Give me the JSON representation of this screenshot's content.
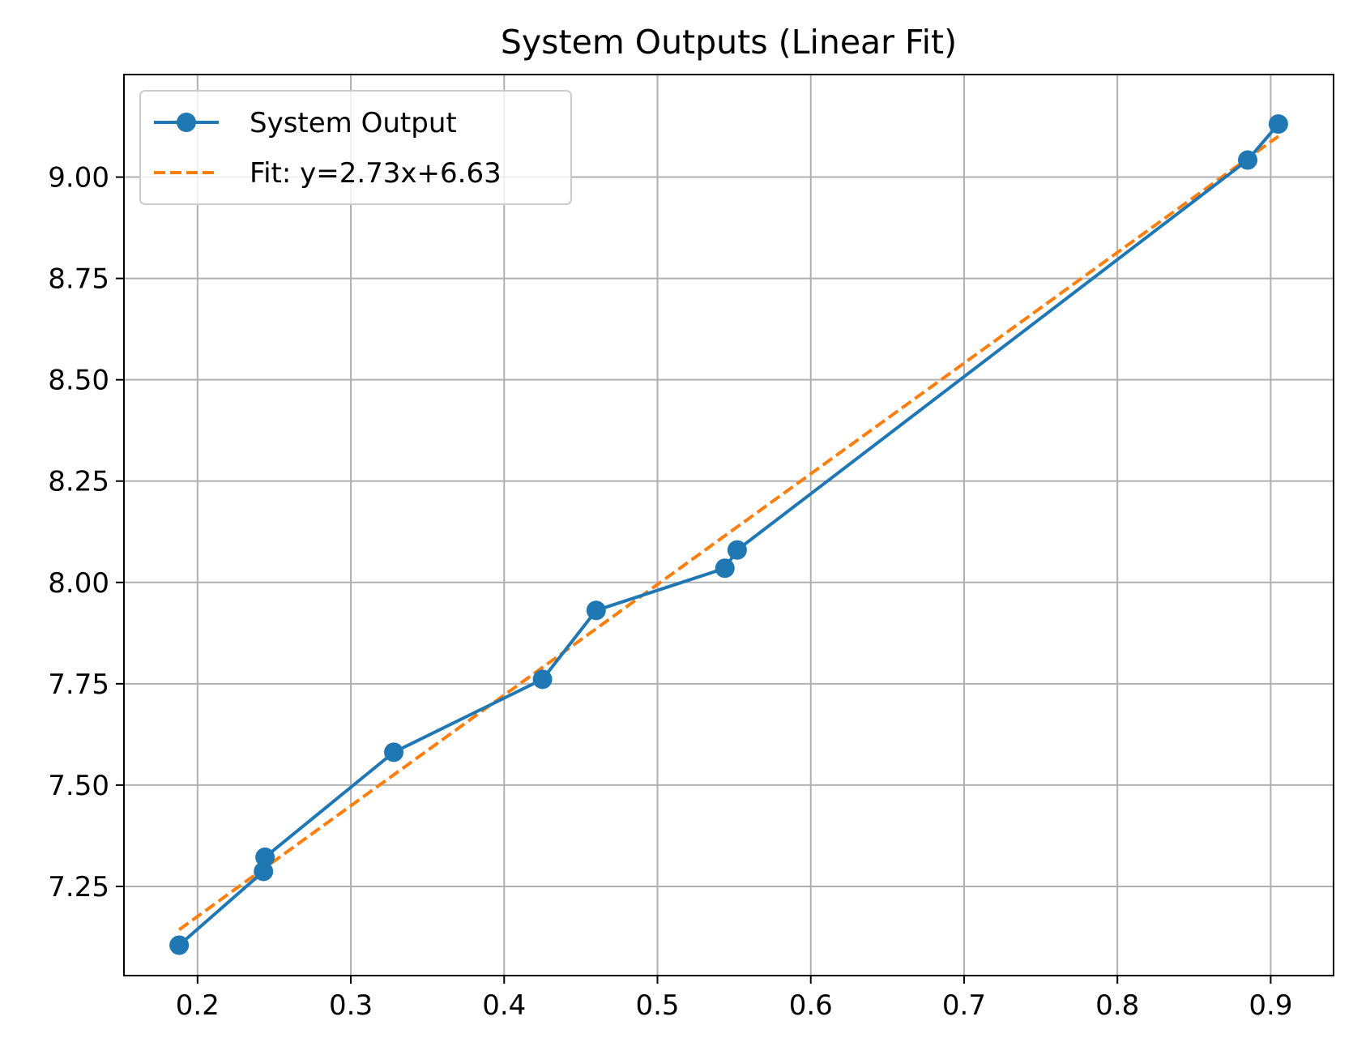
{
  "chart_data": {
    "type": "line",
    "title": "System Outputs (Linear Fit)",
    "xlabel": "",
    "ylabel": "",
    "xlim": [
      0.152,
      0.941
    ],
    "ylim": [
      7.03,
      9.253
    ],
    "grid": true,
    "legend_position": "top-left",
    "x_ticks": [
      0.2,
      0.3,
      0.4,
      0.5,
      0.6,
      0.7,
      0.8,
      0.9
    ],
    "x_tick_labels": [
      "0.2",
      "0.3",
      "0.4",
      "0.5",
      "0.6",
      "0.7",
      "0.8",
      "0.9"
    ],
    "y_ticks": [
      7.25,
      7.5,
      7.75,
      8.0,
      8.25,
      8.5,
      8.75,
      9.0
    ],
    "y_tick_labels": [
      "7.25",
      "7.50",
      "7.75",
      "8.00",
      "8.25",
      "8.50",
      "8.75",
      "9.00"
    ],
    "series": [
      {
        "name": "System Output",
        "kind": "line-marker",
        "color": "#1f77b4",
        "x": [
          0.188,
          0.243,
          0.244,
          0.328,
          0.425,
          0.46,
          0.544,
          0.552,
          0.885,
          0.905
        ],
        "y": [
          7.105,
          7.287,
          7.322,
          7.581,
          7.761,
          7.931,
          8.035,
          8.08,
          9.042,
          9.131
        ]
      },
      {
        "name": "Fit: y=2.73x+6.63",
        "kind": "dashed-line",
        "color": "#ff7f0e",
        "slope": 2.73,
        "intercept": 6.63,
        "x_range": [
          0.188,
          0.905
        ]
      }
    ]
  }
}
